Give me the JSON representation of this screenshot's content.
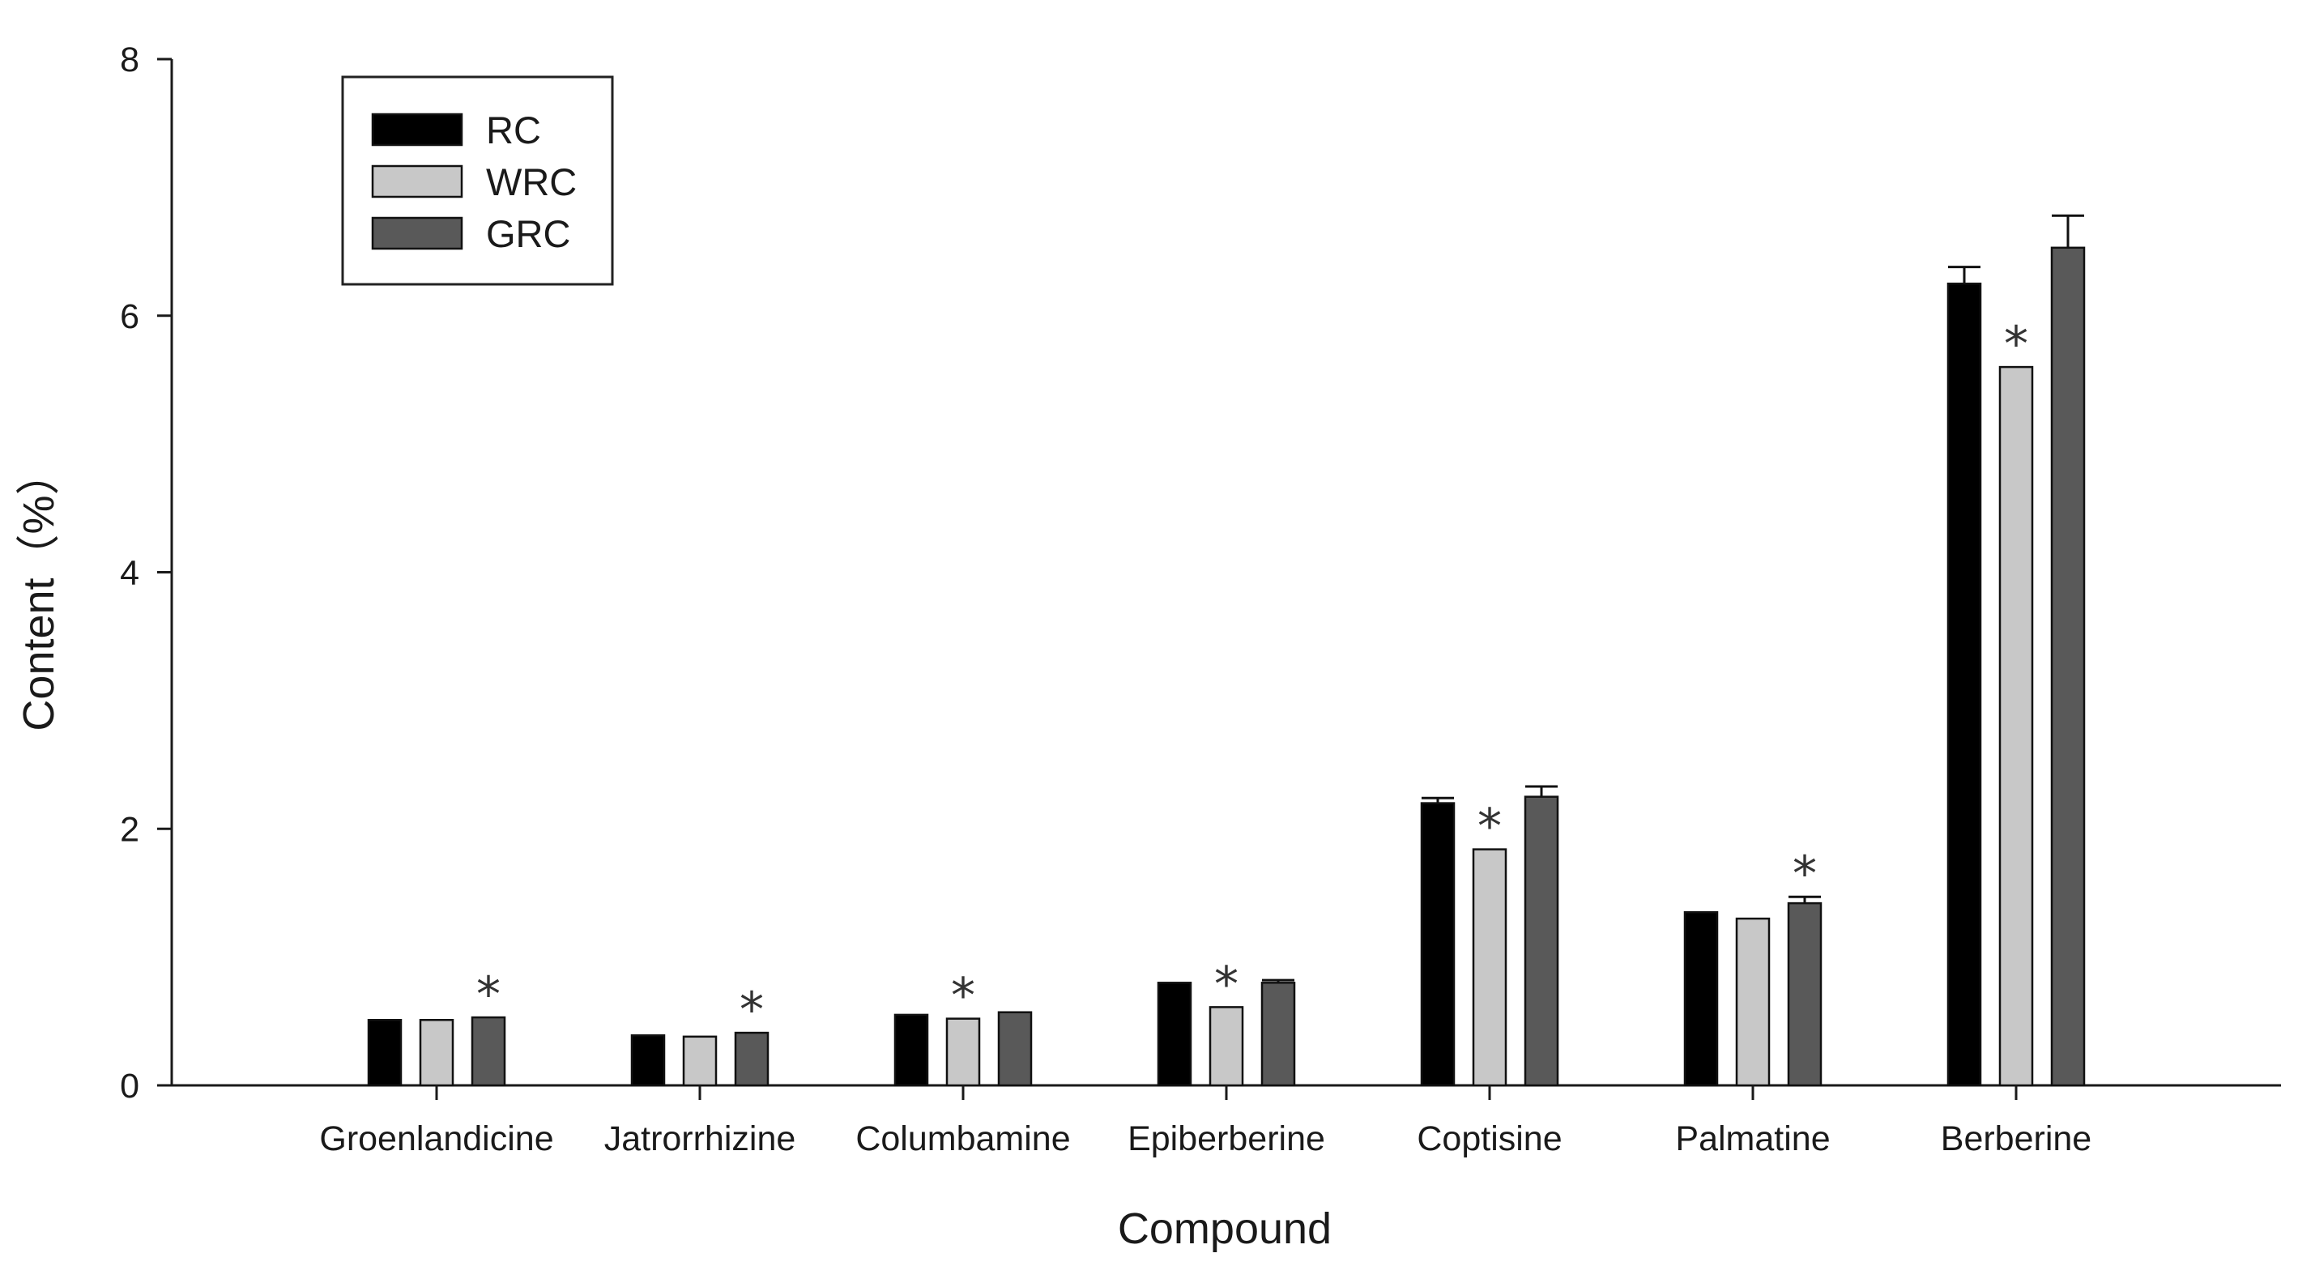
{
  "chart_data": {
    "type": "bar",
    "xlabel": "Compound",
    "ylabel": "Content（%）",
    "ylim": [
      0,
      8
    ],
    "yticks": [
      0,
      2,
      4,
      6,
      8
    ],
    "categories": [
      "Groenlandicine",
      "Jatrorrhizine",
      "Columbamine",
      "Epiberberine",
      "Coptisine",
      "Palmatine",
      "Berberine"
    ],
    "series": [
      {
        "name": "RC",
        "color": "#000000",
        "values": [
          0.51,
          0.39,
          0.55,
          0.8,
          2.2,
          1.35,
          6.25
        ],
        "errors": [
          0,
          0,
          0,
          0,
          0.04,
          0,
          0.13
        ]
      },
      {
        "name": "WRC",
        "color": "#c8c8c8",
        "values": [
          0.51,
          0.38,
          0.52,
          0.61,
          1.84,
          1.3,
          5.6
        ],
        "errors": [
          0,
          0,
          0,
          0,
          0,
          0,
          0
        ]
      },
      {
        "name": "GRC",
        "color": "#595959",
        "values": [
          0.53,
          0.41,
          0.57,
          0.8,
          2.25,
          1.42,
          6.53
        ],
        "errors": [
          0,
          0,
          0,
          0.02,
          0.08,
          0.05,
          0.25
        ]
      }
    ],
    "significance": [
      {
        "category": "Groenlandicine",
        "series": "GRC",
        "mark": "*"
      },
      {
        "category": "Jatrorrhizine",
        "series": "GRC",
        "mark": "*"
      },
      {
        "category": "Columbamine",
        "series": "WRC",
        "mark": "*"
      },
      {
        "category": "Epiberberine",
        "series": "WRC",
        "mark": "*"
      },
      {
        "category": "Coptisine",
        "series": "WRC",
        "mark": "*"
      },
      {
        "category": "Palmatine",
        "series": "GRC",
        "mark": "*"
      },
      {
        "category": "Berberine",
        "series": "WRC",
        "mark": "*"
      }
    ],
    "legend_position": "top-left",
    "grid": false
  }
}
